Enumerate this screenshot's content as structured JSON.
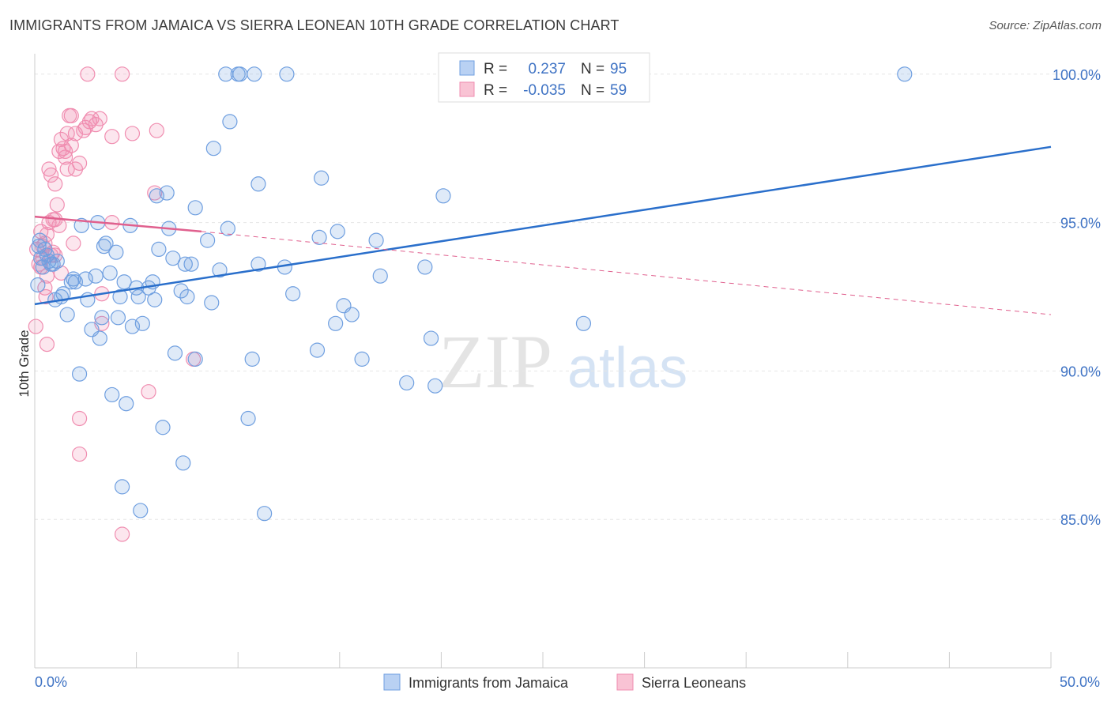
{
  "header": {
    "title": "IMMIGRANTS FROM JAMAICA VS SIERRA LEONEAN 10TH GRADE CORRELATION CHART",
    "source": "Source: ZipAtlas.com"
  },
  "watermark": {
    "part1": "ZIP",
    "part2": "atlas"
  },
  "chart_data": {
    "type": "scatter",
    "xlabel": "",
    "ylabel": "10th Grade",
    "xlim": [
      0,
      50
    ],
    "ylim": [
      80.0,
      100.9
    ],
    "x_tick_labels": {
      "left": "0.0%",
      "right": "50.0%"
    },
    "y_ticks": [
      {
        "value": 100,
        "label": "100.0%"
      },
      {
        "value": 95,
        "label": "95.0%"
      },
      {
        "value": 90,
        "label": "90.0%"
      },
      {
        "value": 85,
        "label": "85.0%"
      }
    ],
    "colors": {
      "jamaica": "#6f9fe0",
      "jamaica_line": "#2a6fcb",
      "sierra": "#f08db0",
      "sierra_line": "#e0608e",
      "tick": "#3f73c4"
    },
    "stats": [
      {
        "series": "Immigrants from Jamaica",
        "r_label": "R =",
        "r": "0.237",
        "n_label": "N =",
        "n": "95"
      },
      {
        "series": "Sierra Leoneans",
        "r_label": "R =",
        "r": "-0.035",
        "n_label": "N =",
        "n": "59"
      }
    ],
    "series": [
      {
        "name": "Immigrants from Jamaica",
        "trend": {
          "x": [
            0,
            50
          ],
          "y": [
            92.25,
            97.55
          ],
          "style": "solid"
        },
        "points": [
          [
            0.2,
            94.2
          ],
          [
            0.3,
            93.8
          ],
          [
            0.4,
            93.5
          ],
          [
            0.5,
            94.1
          ],
          [
            0.6,
            93.9
          ],
          [
            0.7,
            93.7
          ],
          [
            0.8,
            93.6
          ],
          [
            0.9,
            93.6
          ],
          [
            1.0,
            92.4
          ],
          [
            1.3,
            92.5
          ],
          [
            1.4,
            92.6
          ],
          [
            1.6,
            91.9
          ],
          [
            1.8,
            93.0
          ],
          [
            1.9,
            93.1
          ],
          [
            2.0,
            93.0
          ],
          [
            2.2,
            89.9
          ],
          [
            2.3,
            94.9
          ],
          [
            2.5,
            93.1
          ],
          [
            2.6,
            92.4
          ],
          [
            2.8,
            91.4
          ],
          [
            3.0,
            93.2
          ],
          [
            3.1,
            95.0
          ],
          [
            3.2,
            91.1
          ],
          [
            3.3,
            91.8
          ],
          [
            3.4,
            94.2
          ],
          [
            3.5,
            94.3
          ],
          [
            3.7,
            93.3
          ],
          [
            3.8,
            89.2
          ],
          [
            4.0,
            94.0
          ],
          [
            4.1,
            91.8
          ],
          [
            4.2,
            92.5
          ],
          [
            4.3,
            86.1
          ],
          [
            4.4,
            93.0
          ],
          [
            4.5,
            88.9
          ],
          [
            4.7,
            94.9
          ],
          [
            4.8,
            91.5
          ],
          [
            5.0,
            92.8
          ],
          [
            5.1,
            92.5
          ],
          [
            5.2,
            85.3
          ],
          [
            5.3,
            91.6
          ],
          [
            5.6,
            92.8
          ],
          [
            5.8,
            93.0
          ],
          [
            5.9,
            92.4
          ],
          [
            6.0,
            95.9
          ],
          [
            6.1,
            94.1
          ],
          [
            6.3,
            88.1
          ],
          [
            6.5,
            96.0
          ],
          [
            6.6,
            94.8
          ],
          [
            6.8,
            93.8
          ],
          [
            6.9,
            90.6
          ],
          [
            7.2,
            92.7
          ],
          [
            7.3,
            86.9
          ],
          [
            7.4,
            93.6
          ],
          [
            7.5,
            92.5
          ],
          [
            7.7,
            93.6
          ],
          [
            7.9,
            95.5
          ],
          [
            7.9,
            90.4
          ],
          [
            8.5,
            94.4
          ],
          [
            8.7,
            92.3
          ],
          [
            8.8,
            97.5
          ],
          [
            9.1,
            93.4
          ],
          [
            9.4,
            100.0
          ],
          [
            9.5,
            94.8
          ],
          [
            9.6,
            98.4
          ],
          [
            10.0,
            100.0
          ],
          [
            10.1,
            100.0
          ],
          [
            10.5,
            88.4
          ],
          [
            10.7,
            90.4
          ],
          [
            10.8,
            100.0
          ],
          [
            11.0,
            93.6
          ],
          [
            11.0,
            96.3
          ],
          [
            11.3,
            85.2
          ],
          [
            12.3,
            93.5
          ],
          [
            12.4,
            100.0
          ],
          [
            12.7,
            92.6
          ],
          [
            13.9,
            90.7
          ],
          [
            14.0,
            94.5
          ],
          [
            14.1,
            96.5
          ],
          [
            14.8,
            91.6
          ],
          [
            14.9,
            94.7
          ],
          [
            15.2,
            92.2
          ],
          [
            15.6,
            91.9
          ],
          [
            16.1,
            90.4
          ],
          [
            16.8,
            94.4
          ],
          [
            17.0,
            93.2
          ],
          [
            18.3,
            89.6
          ],
          [
            19.2,
            93.5
          ],
          [
            19.5,
            91.1
          ],
          [
            19.7,
            89.5
          ],
          [
            20.1,
            95.9
          ],
          [
            27.0,
            91.6
          ],
          [
            42.8,
            100.0
          ],
          [
            0.15,
            92.9
          ],
          [
            0.25,
            94.4
          ],
          [
            1.1,
            93.7
          ]
        ]
      },
      {
        "name": "Sierra Leoneans",
        "trend": {
          "x": [
            0,
            8.2
          ],
          "y": [
            95.2,
            94.7
          ],
          "style": "solid",
          "dash_x": [
            8.2,
            50
          ],
          "dash_y": [
            94.7,
            91.9
          ]
        },
        "points": [
          [
            0.05,
            91.5
          ],
          [
            0.1,
            94.1
          ],
          [
            0.2,
            93.6
          ],
          [
            0.3,
            94.7
          ],
          [
            0.4,
            93.8
          ],
          [
            0.5,
            92.8
          ],
          [
            0.55,
            92.5
          ],
          [
            0.6,
            94.6
          ],
          [
            0.7,
            95.0
          ],
          [
            0.6,
            90.9
          ],
          [
            0.7,
            96.8
          ],
          [
            0.8,
            96.6
          ],
          [
            0.9,
            95.1
          ],
          [
            1.0,
            93.9
          ],
          [
            1.0,
            96.3
          ],
          [
            1.1,
            95.6
          ],
          [
            1.2,
            97.4
          ],
          [
            1.3,
            97.8
          ],
          [
            1.4,
            97.5
          ],
          [
            1.5,
            97.4
          ],
          [
            1.6,
            96.8
          ],
          [
            1.6,
            98.0
          ],
          [
            1.7,
            98.6
          ],
          [
            1.8,
            98.6
          ],
          [
            1.8,
            97.6
          ],
          [
            2.0,
            96.8
          ],
          [
            2.0,
            98.0
          ],
          [
            2.2,
            97.0
          ],
          [
            2.2,
            88.4
          ],
          [
            2.2,
            87.2
          ],
          [
            2.4,
            98.1
          ],
          [
            2.5,
            98.2
          ],
          [
            2.6,
            100.0
          ],
          [
            2.8,
            98.5
          ],
          [
            3.0,
            98.3
          ],
          [
            3.2,
            98.5
          ],
          [
            3.3,
            92.6
          ],
          [
            3.3,
            91.6
          ],
          [
            3.8,
            97.9
          ],
          [
            3.8,
            95.0
          ],
          [
            4.3,
            100.0
          ],
          [
            4.3,
            84.5
          ],
          [
            4.8,
            98.0
          ],
          [
            5.6,
            89.3
          ],
          [
            6.0,
            98.1
          ],
          [
            7.8,
            90.4
          ],
          [
            0.3,
            93.5
          ],
          [
            0.4,
            94.2
          ],
          [
            0.5,
            94.3
          ],
          [
            0.6,
            93.2
          ],
          [
            0.8,
            93.9
          ],
          [
            0.9,
            94.0
          ],
          [
            1.0,
            95.1
          ],
          [
            1.2,
            94.9
          ],
          [
            1.3,
            93.3
          ],
          [
            1.5,
            97.2
          ],
          [
            1.9,
            94.3
          ],
          [
            2.7,
            98.4
          ],
          [
            5.9,
            96.0
          ]
        ]
      }
    ]
  },
  "legend": {
    "items": [
      "Immigrants from Jamaica",
      "Sierra Leoneans"
    ]
  }
}
